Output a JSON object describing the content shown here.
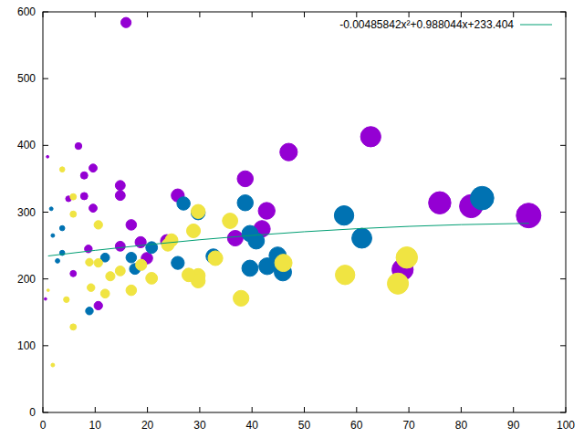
{
  "chart_data": {
    "type": "scatter",
    "xlim": [
      0,
      100
    ],
    "ylim": [
      0,
      600
    ],
    "xticks": [
      0,
      10,
      20,
      30,
      40,
      50,
      60,
      70,
      80,
      90,
      100
    ],
    "yticks": [
      0,
      100,
      200,
      300,
      400,
      500,
      600
    ],
    "grid": false,
    "legend": "top-right",
    "series": [
      {
        "color": "#9400d3",
        "marker": "circle",
        "x": [
          15.9,
          6.8,
          9.6,
          7.9,
          14.8,
          14.8,
          9.6,
          7.9,
          4.9,
          16.9,
          62.7,
          47,
          38.7,
          42.8,
          41.9,
          36.8,
          25.8,
          75.9,
          81.9,
          92.9,
          68.8,
          19.9,
          18.7,
          14.8,
          8.7,
          5.8,
          10.6,
          0.5,
          0.9,
          23.7
        ],
        "values": [
          584,
          399,
          366,
          355,
          340,
          325,
          306,
          324,
          320,
          281,
          413,
          390,
          350,
          302,
          275,
          261,
          325,
          314,
          309,
          295,
          214,
          231,
          255,
          249,
          245,
          208,
          160,
          170,
          383,
          257
        ],
        "size": [
          16,
          7,
          10,
          8,
          15,
          15,
          10,
          8,
          5,
          17,
          63,
          47,
          39,
          43,
          42,
          37,
          26,
          76,
          82,
          93,
          69,
          20,
          19,
          15,
          9,
          6,
          11,
          1,
          1,
          24
        ]
      },
      {
        "color": "#0072b2",
        "marker": "circle",
        "x": [
          84,
          57.6,
          61,
          38.7,
          29.7,
          26.9,
          39.6,
          40.8,
          39.6,
          42.9,
          44.9,
          45.9,
          32.6,
          25.8,
          20.8,
          17.6,
          16.9,
          11.9,
          8.9,
          3.7,
          3.7,
          1.6,
          1.9,
          2.8
        ],
        "values": [
          321,
          295,
          261,
          314,
          299,
          313,
          268,
          257,
          216,
          219,
          235,
          210,
          234,
          224,
          247,
          215,
          232,
          232,
          152,
          239,
          276,
          305,
          265,
          227
        ],
        "size": [
          84,
          58,
          61,
          39,
          30,
          27,
          40,
          41,
          40,
          43,
          45,
          46,
          33,
          26,
          21,
          18,
          17,
          12,
          9,
          4,
          4,
          2,
          2,
          3
        ]
      },
      {
        "color": "#f0e442",
        "marker": "circle",
        "x": [
          46,
          35.8,
          69.6,
          67.9,
          57.8,
          37.9,
          29.7,
          29.7,
          29.7,
          27.9,
          28.8,
          33,
          24.6,
          23.9,
          18.8,
          20.8,
          16.9,
          14.8,
          12.9,
          11.9,
          10.6,
          9.2,
          8.9,
          5.8,
          5.8,
          4.5,
          5.8,
          10.6,
          3.7,
          1.9,
          1.0
        ],
        "values": [
          224,
          287,
          232,
          193,
          206,
          171,
          301,
          205,
          197,
          206,
          272,
          231,
          258,
          251,
          221,
          201,
          183,
          212,
          204,
          178,
          224,
          187,
          225,
          323,
          297,
          169,
          128,
          281,
          364,
          71,
          183
        ],
        "size": [
          46,
          36,
          70,
          68,
          58,
          38,
          30,
          30,
          30,
          28,
          29,
          33,
          25,
          24,
          19,
          21,
          17,
          15,
          13,
          12,
          11,
          9,
          9,
          6,
          6,
          5,
          6,
          11,
          4,
          2,
          1
        ]
      },
      {
        "name": "-0.00485842x²+0.988044x+233.404",
        "type": "line",
        "color": "#009e73",
        "line_style": "solid",
        "x": [
          1,
          10,
          20,
          30,
          40,
          50,
          60,
          70,
          80,
          93
        ],
        "values": [
          234.4,
          242.8,
          251.2,
          258.7,
          265.2,
          270.7,
          275.2,
          278.7,
          281.3,
          283.3
        ]
      }
    ]
  }
}
